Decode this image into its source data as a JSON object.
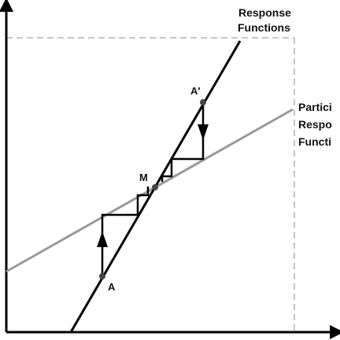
{
  "diagram": {
    "response_label": [
      "Response",
      "Functions"
    ],
    "participation_label": [
      "Partici",
      "Respo",
      "Functi"
    ],
    "points": {
      "a": "A",
      "a_prime": "A′",
      "m": "M"
    }
  },
  "colors": {
    "axis": "#000000",
    "response_line": "#000000",
    "participation_line": "#999999",
    "boundary": "#b3b3b3",
    "steps": "#000000"
  }
}
